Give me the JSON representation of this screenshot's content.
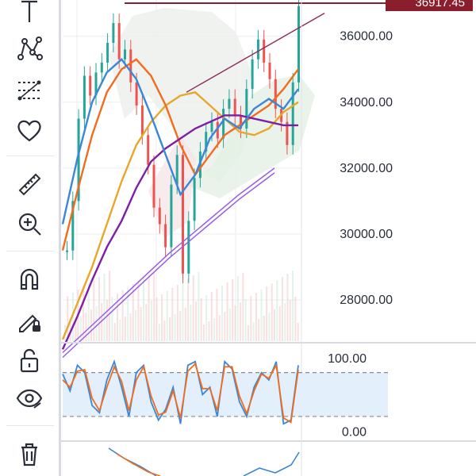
{
  "toolbar": {
    "items": [
      {
        "icon": "text-tool-icon"
      },
      {
        "icon": "pattern-tool-icon"
      },
      {
        "icon": "fib-levels-icon"
      },
      {
        "icon": "favorite-heart-icon"
      },
      {
        "icon": "ruler-measure-icon"
      },
      {
        "icon": "zoom-in-icon"
      },
      {
        "icon": "magnet-icon"
      },
      {
        "icon": "lock-drawing-icon"
      },
      {
        "icon": "unlock-icon"
      },
      {
        "icon": "eye-hide-icon"
      },
      {
        "icon": "trash-icon"
      }
    ]
  },
  "price_tag": "36917.45",
  "chart_data": [
    {
      "type": "line",
      "panel": "price",
      "y_ticks": [
        "36000.00",
        "34000.00",
        "32000.00",
        "30000.00",
        "28000.00"
      ],
      "y_tick_values": [
        36000,
        34000,
        32000,
        30000,
        28000
      ],
      "ylim": [
        26750,
        37100
      ],
      "current_price": 36917.45,
      "series": [
        {
          "color": "#e8a72a",
          "values": [
            26800,
            27900,
            29000,
            30300,
            31600,
            32700,
            33400,
            33900,
            34200,
            34300,
            33900,
            33500,
            33100,
            33000,
            33200,
            33700,
            34000
          ]
        },
        {
          "color": "#f26c1d",
          "values": [
            29500,
            31300,
            33000,
            34300,
            35000,
            35300,
            34800,
            33900,
            32700,
            31800,
            32400,
            33000,
            33300,
            33600,
            33900,
            34400,
            35000
          ]
        },
        {
          "color": "#7d1fa6",
          "values": [
            26500,
            27500,
            28600,
            29600,
            30400,
            31400,
            32200,
            32600,
            32900,
            33200,
            33400,
            33600,
            33600,
            33500,
            33400,
            33300,
            33300
          ]
        },
        {
          "color": "#3a87d8",
          "values": [
            30300,
            32300,
            34000,
            34900,
            35300,
            34700,
            33600,
            32400,
            31200,
            31800,
            32900,
            33500,
            33200,
            33800,
            34100,
            33800,
            34400
          ]
        },
        {
          "color": "#9b5de5",
          "values": [
            26400,
            27400,
            28400,
            29400,
            30300,
            31200,
            32000
          ]
        }
      ]
    },
    {
      "type": "line",
      "panel": "stochastic",
      "y_ticks": [
        "100.00",
        "0.00"
      ],
      "y_tick_values": [
        100,
        0
      ],
      "ylim": [
        -5,
        110
      ],
      "band": [
        20,
        80
      ],
      "series": [
        {
          "color": "#3a87d8",
          "values": [
            78,
            55,
            90,
            80,
            35,
            25,
            70,
            95,
            60,
            20,
            80,
            90,
            40,
            15,
            30,
            60,
            10,
            90,
            95,
            50,
            60,
            20,
            95,
            85,
            40,
            20,
            60,
            80,
            70,
            95,
            10,
            15,
            90
          ]
        },
        {
          "color": "#f26c1d",
          "values": [
            70,
            60,
            82,
            84,
            45,
            28,
            60,
            88,
            68,
            28,
            70,
            88,
            48,
            22,
            26,
            55,
            18,
            82,
            92,
            58,
            58,
            28,
            88,
            88,
            48,
            24,
            55,
            78,
            72,
            90,
            18,
            12,
            84
          ]
        }
      ]
    }
  ]
}
